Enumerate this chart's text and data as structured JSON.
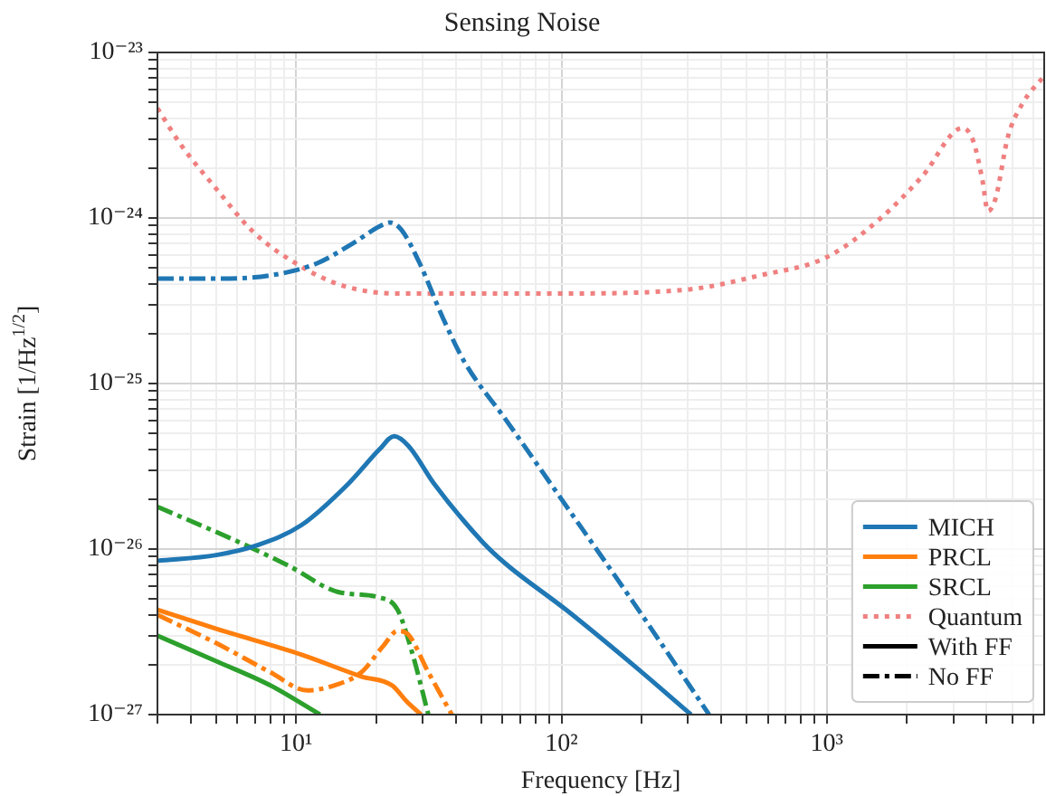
{
  "chart_data": {
    "type": "line",
    "title": "Sensing Noise",
    "xlabel": "Frequency [Hz]",
    "ylabel": "Strain [1/Hz$^{1/2}$]",
    "log": "xy",
    "grid": true,
    "legend": "bottom right",
    "xlim": [
      3,
      6600
    ],
    "ylim": [
      1e-27,
      1e-23
    ],
    "xticks": [
      {
        "value": 3,
        "label": null
      },
      {
        "value": 4,
        "label": null
      },
      {
        "value": 5,
        "label": null
      },
      {
        "value": 6,
        "label": null
      },
      {
        "value": 7,
        "label": null
      },
      {
        "value": 8,
        "label": null
      },
      {
        "value": 9,
        "label": null
      },
      {
        "value": 10,
        "label": "10¹"
      },
      {
        "value": 20,
        "label": null
      },
      {
        "value": 30,
        "label": null
      },
      {
        "value": 40,
        "label": null
      },
      {
        "value": 50,
        "label": null
      },
      {
        "value": 60,
        "label": null
      },
      {
        "value": 70,
        "label": null
      },
      {
        "value": 80,
        "label": null
      },
      {
        "value": 90,
        "label": null
      },
      {
        "value": 100,
        "label": "10²"
      },
      {
        "value": 200,
        "label": null
      },
      {
        "value": 300,
        "label": null
      },
      {
        "value": 400,
        "label": null
      },
      {
        "value": 500,
        "label": null
      },
      {
        "value": 600,
        "label": null
      },
      {
        "value": 700,
        "label": null
      },
      {
        "value": 800,
        "label": null
      },
      {
        "value": 900,
        "label": null
      },
      {
        "value": 1000,
        "label": "10³"
      },
      {
        "value": 2000,
        "label": null
      },
      {
        "value": 3000,
        "label": null
      },
      {
        "value": 4000,
        "label": null
      },
      {
        "value": 5000,
        "label": null
      },
      {
        "value": 6000,
        "label": null
      }
    ],
    "yticks": [
      {
        "value": 1e-27,
        "label": "10⁻²⁷"
      },
      {
        "value": 2e-27,
        "label": null
      },
      {
        "value": 3e-27,
        "label": null
      },
      {
        "value": 4e-27,
        "label": null
      },
      {
        "value": 5e-27,
        "label": null
      },
      {
        "value": 6e-27,
        "label": null
      },
      {
        "value": 7e-27,
        "label": null
      },
      {
        "value": 8e-27,
        "label": null
      },
      {
        "value": 9e-27,
        "label": null
      },
      {
        "value": 1e-26,
        "label": "10⁻²⁶"
      },
      {
        "value": 2e-26,
        "label": null
      },
      {
        "value": 3e-26,
        "label": null
      },
      {
        "value": 4e-26,
        "label": null
      },
      {
        "value": 5e-26,
        "label": null
      },
      {
        "value": 6e-26,
        "label": null
      },
      {
        "value": 7e-26,
        "label": null
      },
      {
        "value": 8e-26,
        "label": null
      },
      {
        "value": 9e-26,
        "label": null
      },
      {
        "value": 1e-25,
        "label": "10⁻²⁵"
      },
      {
        "value": 2e-25,
        "label": null
      },
      {
        "value": 3e-25,
        "label": null
      },
      {
        "value": 4e-25,
        "label": null
      },
      {
        "value": 5e-25,
        "label": null
      },
      {
        "value": 6e-25,
        "label": null
      },
      {
        "value": 7e-25,
        "label": null
      },
      {
        "value": 8e-25,
        "label": null
      },
      {
        "value": 9e-25,
        "label": null
      },
      {
        "value": 1e-24,
        "label": "10⁻²⁴"
      },
      {
        "value": 2e-24,
        "label": null
      },
      {
        "value": 3e-24,
        "label": null
      },
      {
        "value": 4e-24,
        "label": null
      },
      {
        "value": 5e-24,
        "label": null
      },
      {
        "value": 6e-24,
        "label": null
      },
      {
        "value": 7e-24,
        "label": null
      },
      {
        "value": 8e-24,
        "label": null
      },
      {
        "value": 9e-24,
        "label": null
      },
      {
        "value": 1e-23,
        "label": "10⁻²³"
      }
    ],
    "series": [
      {
        "name": "MICH",
        "color": "#1f77b4",
        "line_style": "solid",
        "x": [
          3,
          5,
          7.2,
          10.5,
          15.8,
          20.6,
          23.4,
          26.5,
          33,
          50.5,
          61.9,
          104,
          186,
          308
        ],
        "values": [
          8.5e-27,
          9.2e-27,
          1.06e-26,
          1.4e-26,
          2.5e-26,
          4e-26,
          4.8e-26,
          4.2e-26,
          2.5e-26,
          1.1e-26,
          8.1e-27,
          4.3e-27,
          2e-27,
          1e-27
        ]
      },
      {
        "color": "#1f77b4",
        "line_style": "dashdot",
        "x": [
          3,
          5,
          8,
          11.9,
          16.3,
          20.6,
          22.6,
          24.9,
          29.1,
          35.7,
          43.1,
          61.9,
          100,
          186,
          360
        ],
        "values": [
          4.3e-25,
          4.3e-25,
          4.5e-25,
          5.3e-25,
          7e-25,
          8.9e-25,
          9.4e-25,
          8.5e-25,
          5.4e-25,
          2.5e-25,
          1.35e-25,
          6e-26,
          2e-26,
          4.8e-27,
          1e-27
        ]
      },
      {
        "name": "PRCL",
        "color": "#ff7f0e",
        "line_style": "solid",
        "x": [
          3,
          5,
          10.5,
          17.6,
          23,
          26.1,
          29.6
        ],
        "values": [
          4.3e-27,
          3.3e-27,
          2.3e-27,
          1.7e-27,
          1.5e-27,
          1.2e-27,
          1e-27
        ]
      },
      {
        "color": "#ff7f0e",
        "line_style": "dashdot",
        "x": [
          3,
          5,
          8,
          11,
          13.9,
          17.6,
          21.3,
          24.1,
          26.1,
          31.5,
          38.6
        ],
        "values": [
          4e-27,
          2.7e-27,
          1.8e-27,
          1.4e-27,
          1.5e-27,
          1.8e-27,
          2.6e-27,
          3.2e-27,
          3.1e-27,
          1.8e-27,
          1e-27
        ]
      },
      {
        "name": "SRCL",
        "color": "#2ca02c",
        "line_style": "solid",
        "x": [
          3,
          5,
          8,
          12.3
        ],
        "values": [
          3e-27,
          2.1e-27,
          1.5e-27,
          1e-27
        ]
      },
      {
        "color": "#2ca02c",
        "line_style": "dashdot",
        "x": [
          3,
          6.1,
          9.4,
          14.4,
          20.6,
          24.1,
          27.3,
          31.5
        ],
        "values": [
          1.8e-26,
          1.1e-26,
          7.9e-27,
          5.5e-27,
          5.1e-27,
          4.3e-27,
          2.4e-27,
          1e-27
        ]
      },
      {
        "name": "Quantum",
        "color": "#f08080",
        "line_style": "dotted",
        "x": [
          3,
          3.66,
          5,
          6.86,
          10,
          15,
          24,
          100,
          300,
          560,
          1000,
          1600,
          2300,
          3250,
          3570,
          3860,
          4050,
          4320,
          4820,
          5460,
          6590
        ],
        "values": [
          4.6e-24,
          2.8e-24,
          1.5e-24,
          8.3e-25,
          5.3e-25,
          3.9e-25,
          3.5e-25,
          3.5e-25,
          3.7e-25,
          4.5e-25,
          5.8e-25,
          1e-24,
          1.8e-24,
          3.5e-24,
          2.9e-24,
          1.7e-24,
          1.1e-24,
          1.3e-24,
          3.1e-24,
          4.9e-24,
          7.2e-24
        ]
      },
      {
        "name": "With FF",
        "color": "#000000",
        "line_style": "solid"
      },
      {
        "name": "No FF",
        "color": "#000000",
        "line_style": "dashdot"
      }
    ]
  }
}
